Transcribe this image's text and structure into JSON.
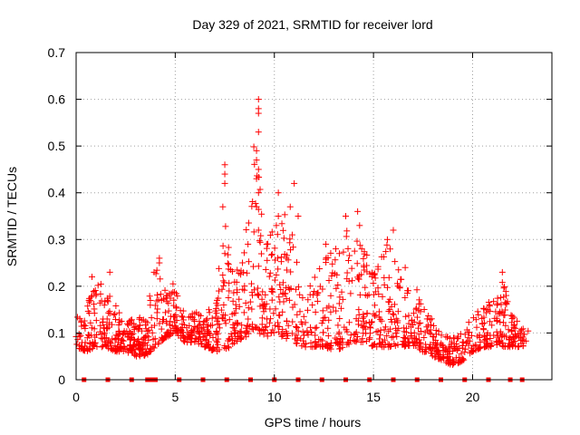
{
  "chart_data": {
    "type": "scatter",
    "title": "Day 329 of 2021, SRMTID for receiver lord",
    "xlabel": "GPS time / hours",
    "ylabel": "SRMTID / TECUs",
    "xlim": [
      0,
      24
    ],
    "ylim": [
      0,
      0.7
    ],
    "xticks": [
      "0",
      "5",
      "10",
      "15",
      "20"
    ],
    "yticks": [
      "0",
      "0.1",
      "0.2",
      "0.3",
      "0.4",
      "0.5",
      "0.6",
      "0.7"
    ],
    "grid": true,
    "legend": "none",
    "series": [
      {
        "name": "SRMTID",
        "marker": "plus",
        "color": "#ff0000",
        "envelope": {
          "hours": [
            0.0,
            0.5,
            1.0,
            1.5,
            2.0,
            2.5,
            3.0,
            3.5,
            4.0,
            4.5,
            5.0,
            5.5,
            6.0,
            6.5,
            7.0,
            7.5,
            8.0,
            8.5,
            9.0,
            9.5,
            10.0,
            10.5,
            11.0,
            11.5,
            12.0,
            12.5,
            13.0,
            13.5,
            14.0,
            14.5,
            15.0,
            15.5,
            16.0,
            16.5,
            17.0,
            17.5,
            18.0,
            18.5,
            19.0,
            19.5,
            20.0,
            20.5,
            21.0,
            21.5,
            22.0,
            22.5,
            22.8
          ],
          "low": [
            0.07,
            0.06,
            0.07,
            0.07,
            0.06,
            0.06,
            0.05,
            0.05,
            0.07,
            0.09,
            0.1,
            0.08,
            0.08,
            0.07,
            0.06,
            0.06,
            0.08,
            0.09,
            0.1,
            0.09,
            0.1,
            0.09,
            0.08,
            0.07,
            0.07,
            0.07,
            0.06,
            0.07,
            0.08,
            0.08,
            0.07,
            0.07,
            0.07,
            0.07,
            0.07,
            0.06,
            0.05,
            0.04,
            0.03,
            0.04,
            0.06,
            0.07,
            0.07,
            0.07,
            0.07,
            0.07,
            0.08
          ],
          "high": [
            0.15,
            0.17,
            0.2,
            0.22,
            0.16,
            0.13,
            0.13,
            0.14,
            0.25,
            0.19,
            0.21,
            0.14,
            0.15,
            0.14,
            0.18,
            0.35,
            0.22,
            0.3,
            0.55,
            0.3,
            0.38,
            0.36,
            0.28,
            0.2,
            0.22,
            0.3,
            0.26,
            0.34,
            0.32,
            0.28,
            0.24,
            0.3,
            0.28,
            0.2,
            0.22,
            0.16,
            0.14,
            0.1,
            0.09,
            0.1,
            0.15,
            0.16,
            0.17,
            0.22,
            0.14,
            0.11,
            0.11
          ]
        },
        "spikes": [
          {
            "x": 7.5,
            "y": 0.46
          },
          {
            "x": 7.5,
            "y": 0.44
          },
          {
            "x": 7.5,
            "y": 0.42
          },
          {
            "x": 7.4,
            "y": 0.37
          },
          {
            "x": 7.5,
            "y": 0.27
          },
          {
            "x": 9.2,
            "y": 0.6
          },
          {
            "x": 9.2,
            "y": 0.58
          },
          {
            "x": 9.2,
            "y": 0.57
          },
          {
            "x": 9.2,
            "y": 0.53
          },
          {
            "x": 9.1,
            "y": 0.49
          },
          {
            "x": 9.1,
            "y": 0.47
          },
          {
            "x": 9.2,
            "y": 0.45
          },
          {
            "x": 9.1,
            "y": 0.43
          },
          {
            "x": 9.2,
            "y": 0.4
          },
          {
            "x": 9.1,
            "y": 0.37
          },
          {
            "x": 9.2,
            "y": 0.32
          },
          {
            "x": 10.2,
            "y": 0.4
          },
          {
            "x": 10.2,
            "y": 0.35
          },
          {
            "x": 10.1,
            "y": 0.33
          },
          {
            "x": 10.8,
            "y": 0.37
          },
          {
            "x": 11.0,
            "y": 0.42
          },
          {
            "x": 11.2,
            "y": 0.35
          },
          {
            "x": 10.9,
            "y": 0.31
          },
          {
            "x": 13.6,
            "y": 0.35
          },
          {
            "x": 14.2,
            "y": 0.36
          },
          {
            "x": 14.3,
            "y": 0.33
          },
          {
            "x": 16.0,
            "y": 0.32
          },
          {
            "x": 15.7,
            "y": 0.3
          },
          {
            "x": 12.6,
            "y": 0.29
          },
          {
            "x": 13.1,
            "y": 0.28
          },
          {
            "x": 16.6,
            "y": 0.24
          },
          {
            "x": 4.2,
            "y": 0.26
          },
          {
            "x": 4.2,
            "y": 0.25
          },
          {
            "x": 1.7,
            "y": 0.23
          },
          {
            "x": 0.8,
            "y": 0.22
          },
          {
            "x": 21.5,
            "y": 0.23
          }
        ],
        "gaps_at_zero_hours": [
          0.4,
          1.6,
          2.8,
          3.6,
          3.8,
          4.0,
          5.2,
          6.4,
          7.6,
          8.8,
          10.0,
          11.2,
          12.4,
          13.6,
          14.8,
          16.0,
          17.2,
          18.4,
          19.6,
          20.8,
          21.9,
          22.5
        ]
      }
    ]
  }
}
